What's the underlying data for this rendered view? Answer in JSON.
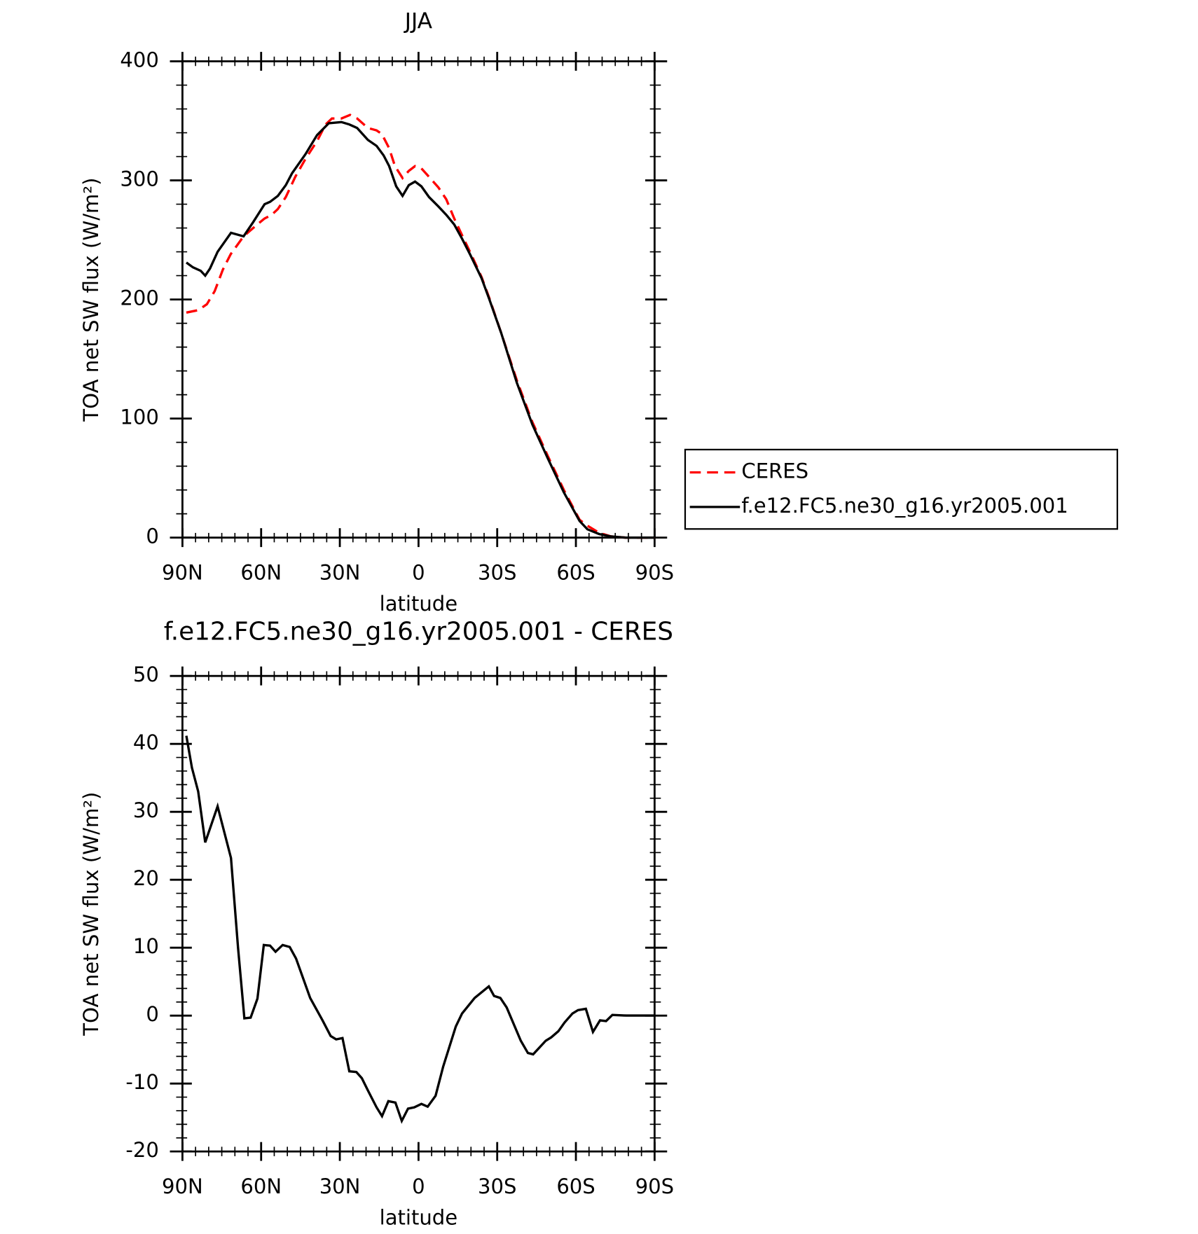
{
  "chart_data": [
    {
      "type": "line",
      "title": "JJA",
      "xlabel": "latitude",
      "ylabel": "TOA net SW flux (W/m²)",
      "xlim": [
        90,
        -90
      ],
      "xticks": [
        {
          "value": 90,
          "label": "90N"
        },
        {
          "value": 60,
          "label": "60N"
        },
        {
          "value": 30,
          "label": "30N"
        },
        0,
        {
          "value": -30,
          "label": "30S"
        },
        {
          "value": -60,
          "label": "60S"
        },
        {
          "value": -90,
          "label": "90S"
        }
      ],
      "ylim": [
        0,
        400
      ],
      "yticks": [
        0,
        100,
        200,
        300,
        400
      ],
      "legend": "right",
      "series": [
        {
          "name": "CERES",
          "color": "#ff0000",
          "linestyle": "dashed",
          "x": [
            88.5,
            84,
            80.7,
            77.7,
            74.6,
            71.6,
            66.7,
            62,
            58.7,
            56,
            53.6,
            50.6,
            47,
            43.1,
            38.7,
            35.4,
            33,
            29.4,
            26.1,
            23.4,
            19.3,
            16,
            14,
            11.2,
            9,
            6.1,
            3.7,
            1.3,
            -1.1,
            -4,
            -7.6,
            -10.6,
            -13.6,
            -16.6,
            -19.6,
            -24,
            -27,
            -31.5,
            -37.5,
            -43.4,
            -49.4,
            -55.4,
            -61.4,
            -64.4,
            -68.9,
            -73.4,
            -79,
            -90
          ],
          "values": [
            189,
            191,
            196,
            207,
            225,
            238,
            253,
            262,
            268,
            271,
            276,
            286,
            303,
            318,
            333,
            347,
            352,
            352,
            355,
            352,
            344,
            342,
            339,
            327,
            312,
            302,
            308,
            312,
            310,
            303,
            294,
            284,
            268,
            254,
            240,
            219,
            201,
            172,
            132,
            97,
            68,
            40,
            15,
            10,
            4,
            1,
            0,
            0
          ]
        },
        {
          "name": "f.e12.FC5.ne30_g16.yr2005.001",
          "color": "#000000",
          "linestyle": "solid",
          "x": [
            88.5,
            86,
            83,
            81.3,
            79.5,
            76.6,
            71.5,
            66.7,
            63,
            58.7,
            56.6,
            53.6,
            50.6,
            48.2,
            43.1,
            38.7,
            34.2,
            29.4,
            26.4,
            23.4,
            19.3,
            16,
            13.3,
            11.2,
            8.5,
            6.1,
            3.7,
            1.3,
            -1.1,
            -4,
            -7.6,
            -10.6,
            -13.6,
            -16.6,
            -19.6,
            -24,
            -27,
            -31.5,
            -37.5,
            -43.4,
            -49.4,
            -55.4,
            -61.4,
            -64.4,
            -68.9,
            -73.4,
            -79,
            -90
          ],
          "values": [
            231,
            227,
            224,
            220,
            226,
            240,
            256,
            253,
            265,
            280,
            282,
            287,
            296,
            306,
            322,
            338,
            348,
            349,
            347,
            344,
            334,
            329,
            321,
            312,
            295,
            287,
            296,
            299,
            295,
            286,
            278,
            271,
            263,
            251,
            238,
            218,
            200,
            172,
            130,
            95,
            66,
            38,
            14,
            7,
            3,
            1,
            0,
            0
          ]
        }
      ]
    },
    {
      "type": "line",
      "title": "f.e12.FC5.ne30_g16.yr2005.001 - CERES",
      "xlabel": "latitude",
      "ylabel": "TOA net SW flux (W/m²)",
      "xlim": [
        90,
        -90
      ],
      "xticks": [
        {
          "value": 90,
          "label": "90N"
        },
        {
          "value": 60,
          "label": "60N"
        },
        {
          "value": 30,
          "label": "30N"
        },
        0,
        {
          "value": -30,
          "label": "30S"
        },
        {
          "value": -60,
          "label": "60S"
        },
        {
          "value": -90,
          "label": "90S"
        }
      ],
      "ylim": [
        -20,
        50
      ],
      "yticks": [
        -20,
        -10,
        0,
        10,
        20,
        30,
        40,
        50
      ],
      "series": [
        {
          "color": "#000000",
          "linestyle": "solid",
          "x": [
            88.5,
            86.4,
            84,
            81.3,
            76.6,
            71.5,
            68.8,
            66.4,
            64,
            61.4,
            59,
            56.6,
            54.5,
            51.8,
            49.1,
            46.7,
            41.3,
            36.6,
            33.5,
            31.4,
            29,
            26.4,
            23.7,
            21.6,
            19.3,
            16,
            13.9,
            11.5,
            8.8,
            6.4,
            4,
            1.6,
            -1.1,
            -3.5,
            -6.5,
            -9.4,
            -14.2,
            -16.6,
            -21.4,
            -26.8,
            -28.8,
            -31.2,
            -33.6,
            -39,
            -41.7,
            -43.7,
            -48.5,
            -50.6,
            -53.3,
            -55.7,
            -58.7,
            -60.8,
            -63.8,
            -66.5,
            -69.2,
            -71.5,
            -73.9,
            -79.3,
            -90
          ],
          "values": [
            41.2,
            36.5,
            33,
            25.5,
            30.8,
            23.2,
            10,
            -0.4,
            -0.3,
            2.5,
            10.4,
            10.3,
            9.4,
            10.4,
            10.1,
            8.4,
            2.6,
            -0.7,
            -3,
            -3.5,
            -3.3,
            -8.2,
            -8.3,
            -9.2,
            -11,
            -13.5,
            -14.8,
            -12.6,
            -12.8,
            -15.5,
            -13.7,
            -13.5,
            -13,
            -13.4,
            -11.8,
            -7.5,
            -1.6,
            0.3,
            2.6,
            4.3,
            2.9,
            2.6,
            1.2,
            -3.7,
            -5.5,
            -5.7,
            -3.7,
            -3.2,
            -2.3,
            -1,
            0.3,
            0.8,
            1,
            -2.4,
            -0.7,
            -0.8,
            0.1,
            0,
            0
          ]
        }
      ]
    }
  ]
}
